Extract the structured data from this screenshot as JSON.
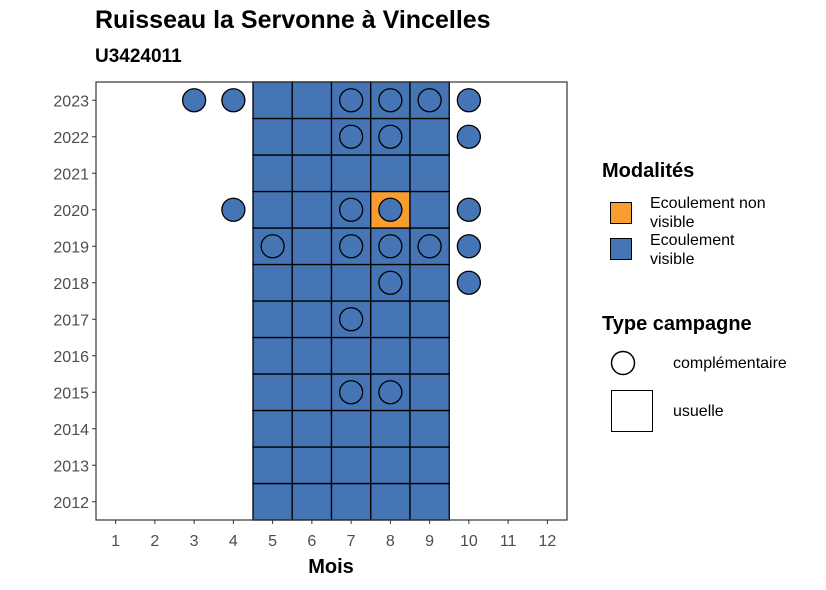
{
  "chart_data": {
    "type": "heatmap",
    "title": "Ruisseau la Servonne à Vincelles",
    "subtitle": "U3424011",
    "xlabel": "Mois",
    "ylabel": "",
    "x_ticks": [
      "1",
      "2",
      "3",
      "4",
      "5",
      "6",
      "7",
      "8",
      "9",
      "10",
      "11",
      "12"
    ],
    "y_ticks": [
      "2012",
      "2013",
      "2014",
      "2015",
      "2016",
      "2017",
      "2018",
      "2019",
      "2020",
      "2021",
      "2022",
      "2023"
    ],
    "xlim": [
      0.5,
      12.5
    ],
    "ylim": [
      2011.5,
      2023.5
    ],
    "grid": false,
    "legend_placement": "right",
    "legend": {
      "modalites_title": "Modalités",
      "modalites": [
        {
          "label": "Ecoulement non visible",
          "color": "#F89E31"
        },
        {
          "label": "Ecoulement visible",
          "color": "#4575B4"
        }
      ],
      "campagne_title": "Type campagne",
      "campagnes": [
        {
          "label": "complémentaire",
          "shape": "circle"
        },
        {
          "label": "usuelle",
          "shape": "square"
        }
      ]
    },
    "usuelle": {
      "months": [
        5,
        6,
        7,
        8,
        9
      ],
      "years": [
        2012,
        2013,
        2014,
        2015,
        2016,
        2017,
        2018,
        2019,
        2020,
        2021,
        2022,
        2023
      ],
      "default_modalite": "Ecoulement visible",
      "exceptions": [
        {
          "year": 2020,
          "month": 8,
          "modalite": "Ecoulement non visible"
        }
      ]
    },
    "complementaire": [
      {
        "year": 2023,
        "month": 3,
        "modalite": "Ecoulement visible"
      },
      {
        "year": 2023,
        "month": 4,
        "modalite": "Ecoulement visible"
      },
      {
        "year": 2023,
        "month": 7,
        "modalite": "Ecoulement visible"
      },
      {
        "year": 2023,
        "month": 8,
        "modalite": "Ecoulement visible"
      },
      {
        "year": 2023,
        "month": 9,
        "modalite": "Ecoulement visible"
      },
      {
        "year": 2023,
        "month": 10,
        "modalite": "Ecoulement visible"
      },
      {
        "year": 2022,
        "month": 7,
        "modalite": "Ecoulement visible"
      },
      {
        "year": 2022,
        "month": 8,
        "modalite": "Ecoulement visible"
      },
      {
        "year": 2022,
        "month": 10,
        "modalite": "Ecoulement visible"
      },
      {
        "year": 2020,
        "month": 4,
        "modalite": "Ecoulement visible"
      },
      {
        "year": 2020,
        "month": 7,
        "modalite": "Ecoulement visible"
      },
      {
        "year": 2020,
        "month": 8,
        "modalite": "Ecoulement visible"
      },
      {
        "year": 2020,
        "month": 10,
        "modalite": "Ecoulement visible"
      },
      {
        "year": 2019,
        "month": 5,
        "modalite": "Ecoulement visible"
      },
      {
        "year": 2019,
        "month": 7,
        "modalite": "Ecoulement visible"
      },
      {
        "year": 2019,
        "month": 8,
        "modalite": "Ecoulement visible"
      },
      {
        "year": 2019,
        "month": 9,
        "modalite": "Ecoulement visible"
      },
      {
        "year": 2019,
        "month": 10,
        "modalite": "Ecoulement visible"
      },
      {
        "year": 2018,
        "month": 8,
        "modalite": "Ecoulement visible"
      },
      {
        "year": 2018,
        "month": 10,
        "modalite": "Ecoulement visible"
      },
      {
        "year": 2017,
        "month": 7,
        "modalite": "Ecoulement visible"
      },
      {
        "year": 2015,
        "month": 7,
        "modalite": "Ecoulement visible"
      },
      {
        "year": 2015,
        "month": 8,
        "modalite": "Ecoulement visible"
      }
    ]
  }
}
